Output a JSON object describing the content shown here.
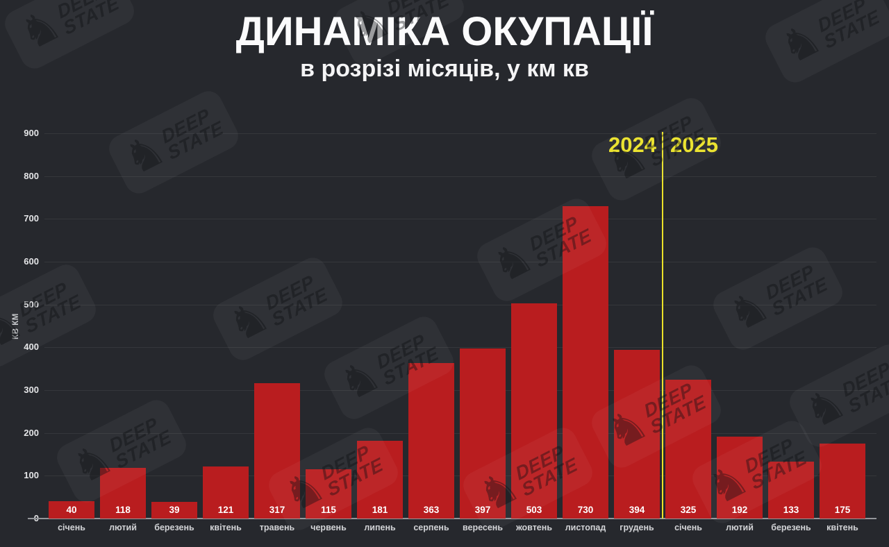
{
  "header": {
    "title": "ДИНАМІКА ОКУПАЦІЇ",
    "subtitle": "в розрізі місяців, у км кв"
  },
  "divider": {
    "left_year": "2024",
    "right_year": "2025",
    "line_color": "#ebe228"
  },
  "watermark": {
    "knight_icon": "♞",
    "brand_line1": "DEEP",
    "brand_line2": "STATE"
  },
  "colors": {
    "background": "#26282d",
    "bar": "#b91d1f",
    "accent_yellow": "#ebe228",
    "axis_line": "#94969a",
    "grid_line": "rgba(255,255,255,0.07)",
    "text_primary": "#fbfbfc",
    "text_secondary": "#d2d3d6"
  },
  "chart_data": {
    "type": "bar",
    "title": "ДИНАМІКА ОКУПАЦІЇ",
    "subtitle": "в розрізі місяців, у км кв",
    "ylabel": "КВ КМ",
    "xlabel": "",
    "ylim": [
      0,
      900
    ],
    "yticks": [
      0,
      100,
      200,
      300,
      400,
      500,
      600,
      700,
      800,
      900
    ],
    "grid": true,
    "legend": false,
    "bar_color": "#b91d1f",
    "categories": [
      "січень",
      "лютий",
      "березень",
      "квітень",
      "травень",
      "червень",
      "липень",
      "серпень",
      "вересень",
      "жовтень",
      "листопад",
      "грудень",
      "січень",
      "лютий",
      "березень",
      "квітень"
    ],
    "values": [
      40,
      118,
      39,
      121,
      317,
      115,
      181,
      363,
      397,
      503,
      730,
      394,
      325,
      192,
      133,
      175
    ],
    "year_groups": [
      {
        "year": "2024",
        "month_count": 12
      },
      {
        "year": "2025",
        "month_count": 4
      }
    ],
    "divider_after_index": 11
  }
}
